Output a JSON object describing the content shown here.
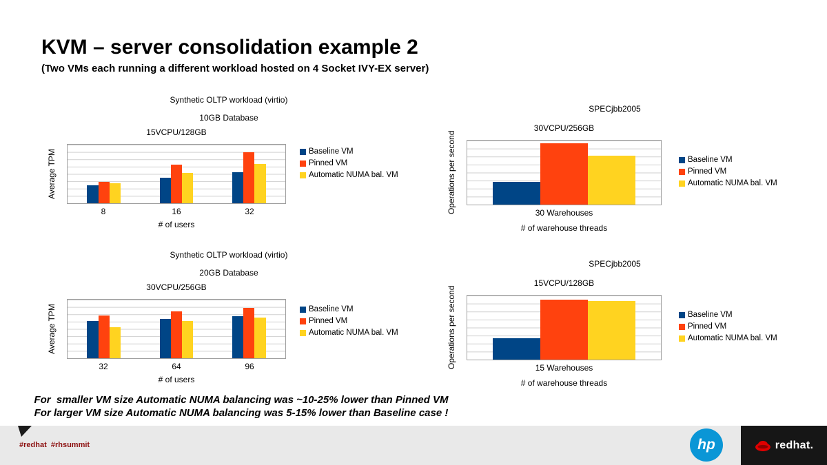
{
  "slide": {
    "title": "KVM – server consolidation example 2",
    "subtitle": "(Two VMs each running a different workload hosted on 4 Socket IVY-EX server)",
    "conclusion": [
      "For  smaller VM size Automatic NUMA balancing was ~10-25% lower than Pinned VM",
      "For larger VM size Automatic NUMA balancing was 5-15% lower than Baseline case !"
    ]
  },
  "footer": {
    "hashtags": "#redhat  #rhsummit",
    "hp_logo_text": "hp",
    "redhat_logo_text": "redhat."
  },
  "colors": {
    "baseline": "#004586",
    "pinned": "#FF420E",
    "numa": "#FFD320",
    "hp_blue": "#0A96D6",
    "redhat_red": "#E00000",
    "hashtag_red": "#8D1111"
  },
  "chart_data": [
    {
      "type": "bar",
      "workload_title": [
        "Synthetic OLTP workload (virtio)",
        "10GB Database"
      ],
      "title": "15VCPU/128GB",
      "ylabel": "Average TPM",
      "xlabel": "# of users",
      "categories": [
        "8",
        "16",
        "32"
      ],
      "ylim": [
        0,
        100
      ],
      "grid": true,
      "legend_position": "right",
      "series": [
        {
          "name": "Baseline VM",
          "color": "#004586",
          "values": [
            31,
            43,
            53
          ]
        },
        {
          "name": "Pinned VM",
          "color": "#FF420E",
          "values": [
            37,
            66,
            87
          ]
        },
        {
          "name": "Automatic NUMA bal. VM",
          "color": "#FFD320",
          "values": [
            34,
            52,
            67
          ]
        }
      ]
    },
    {
      "type": "bar",
      "workload_title": [
        "SPECjbb2005"
      ],
      "title": "30VCPU/256GB",
      "ylabel": "Operations per second",
      "xlabel": "# of warehouse threads",
      "categories": [
        "30 Warehouses"
      ],
      "ylim": [
        0,
        100
      ],
      "grid": true,
      "legend_position": "right",
      "series": [
        {
          "name": "Baseline VM",
          "color": "#004586",
          "values": [
            35
          ]
        },
        {
          "name": "Pinned VM",
          "color": "#FF420E",
          "values": [
            96
          ]
        },
        {
          "name": "Automatic NUMA bal. VM",
          "color": "#FFD320",
          "values": [
            76
          ]
        }
      ]
    },
    {
      "type": "bar",
      "workload_title": [
        "Synthetic OLTP workload (virtio)",
        "20GB Database"
      ],
      "title": "30VCPU/256GB",
      "ylabel": "Average TPM",
      "xlabel": "# of users",
      "categories": [
        "32",
        "64",
        "96"
      ],
      "ylim": [
        0,
        100
      ],
      "grid": true,
      "legend_position": "right",
      "series": [
        {
          "name": "Baseline VM",
          "color": "#004586",
          "values": [
            64,
            67,
            72
          ]
        },
        {
          "name": "Pinned VM",
          "color": "#FF420E",
          "values": [
            73,
            80,
            86
          ]
        },
        {
          "name": "Automatic NUMA bal. VM",
          "color": "#FFD320",
          "values": [
            53,
            64,
            69
          ]
        }
      ]
    },
    {
      "type": "bar",
      "workload_title": [
        "SPECjbb2005"
      ],
      "title": "15VCPU/128GB",
      "ylabel": "Operations per second",
      "xlabel": "# of warehouse threads",
      "categories": [
        "15 Warehouses"
      ],
      "ylim": [
        0,
        100
      ],
      "grid": true,
      "legend_position": "right",
      "series": [
        {
          "name": "Baseline VM",
          "color": "#004586",
          "values": [
            33
          ]
        },
        {
          "name": "Pinned VM",
          "color": "#FF420E",
          "values": [
            94
          ]
        },
        {
          "name": "Automatic NUMA bal. VM",
          "color": "#FFD320",
          "values": [
            91
          ]
        }
      ]
    }
  ]
}
